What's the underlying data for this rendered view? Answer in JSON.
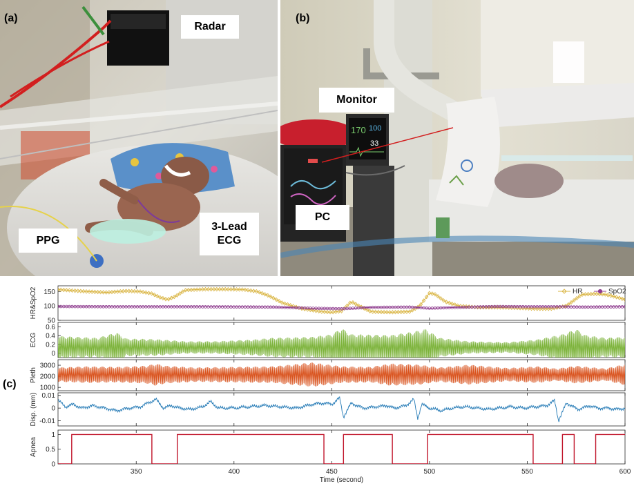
{
  "panels": {
    "a": {
      "tag": "(a)",
      "callouts": {
        "radar": "Radar",
        "ppg": "PPG",
        "ecg_line1": "3-Lead",
        "ecg_line2": "ECG"
      }
    },
    "b": {
      "tag": "(b)",
      "callouts": {
        "monitor": "Monitor",
        "pc": "PC"
      },
      "monitor_readouts": [
        "170",
        "100",
        "33"
      ]
    },
    "c": {
      "tag": "(c)"
    }
  },
  "colors": {
    "hr": "#d9b441",
    "spo2": "#8e3b8e",
    "ecg": "#7cb33a",
    "pleth": "#d9531e",
    "disp": "#1f77b4",
    "apnea": "#c0142a",
    "cable_red": "#d21f1f"
  },
  "chart_data": {
    "type": "line",
    "x_axis": {
      "label": "Time (second)",
      "lim": [
        310,
        600
      ],
      "ticks": [
        350,
        400,
        450,
        500,
        550,
        600
      ]
    },
    "subplots": [
      {
        "id": "vitals",
        "ylabel": "HR&SpO2",
        "ylim": [
          50,
          170
        ],
        "yticks": [
          50,
          100,
          150
        ],
        "legend_position": "top-right",
        "series": [
          {
            "name": "HR",
            "color": "#d9b441",
            "marker": "diamond",
            "points": [
              [
                310,
                157
              ],
              [
                325,
                150
              ],
              [
                335,
                147
              ],
              [
                345,
                152
              ],
              [
                352,
                150
              ],
              [
                358,
                143
              ],
              [
                362,
                130
              ],
              [
                366,
                122
              ],
              [
                370,
                133
              ],
              [
                375,
                155
              ],
              [
                385,
                158
              ],
              [
                395,
                158
              ],
              [
                405,
                157
              ],
              [
                412,
                150
              ],
              [
                418,
                135
              ],
              [
                425,
                110
              ],
              [
                435,
                90
              ],
              [
                445,
                80
              ],
              [
                450,
                78
              ],
              [
                455,
                82
              ],
              [
                460,
                115
              ],
              [
                464,
                100
              ],
              [
                470,
                80
              ],
              [
                480,
                78
              ],
              [
                490,
                80
              ],
              [
                495,
                100
              ],
              [
                500,
                145
              ],
              [
                503,
                140
              ],
              [
                508,
                115
              ],
              [
                515,
                100
              ],
              [
                525,
                95
              ],
              [
                535,
                95
              ],
              [
                545,
                93
              ],
              [
                555,
                90
              ],
              [
                562,
                90
              ],
              [
                570,
                100
              ],
              [
                578,
                140
              ],
              [
                585,
                142
              ],
              [
                590,
                140
              ],
              [
                596,
                130
              ],
              [
                600,
                122
              ]
            ]
          },
          {
            "name": "SpO2",
            "color": "#8e3b8e",
            "marker": "circle",
            "points": [
              [
                310,
                98
              ],
              [
                340,
                97
              ],
              [
                380,
                97
              ],
              [
                420,
                96
              ],
              [
                440,
                92
              ],
              [
                455,
                90
              ],
              [
                470,
                95
              ],
              [
                490,
                96
              ],
              [
                500,
                92
              ],
              [
                515,
                95
              ],
              [
                535,
                98
              ],
              [
                550,
                97
              ],
              [
                565,
                97
              ],
              [
                580,
                96
              ],
              [
                600,
                97
              ]
            ]
          }
        ]
      },
      {
        "id": "ecg",
        "ylabel": "ECG",
        "ylim": [
          -0.1,
          0.7
        ],
        "yticks": [
          0,
          0.2,
          0.4,
          0.6
        ],
        "series": [
          {
            "name": "",
            "color": "#7cb33a",
            "signal": "oscillation",
            "baseline": 0.13,
            "envelope": [
              [
                310,
                0.26
              ],
              [
                330,
                0.22
              ],
              [
                340,
                0.34
              ],
              [
                345,
                0.2
              ],
              [
                360,
                0.19
              ],
              [
                375,
                0.14
              ],
              [
                390,
                0.14
              ],
              [
                410,
                0.18
              ],
              [
                420,
                0.22
              ],
              [
                440,
                0.24
              ],
              [
                450,
                0.3
              ],
              [
                455,
                0.44
              ],
              [
                460,
                0.3
              ],
              [
                480,
                0.28
              ],
              [
                492,
                0.36
              ],
              [
                498,
                0.42
              ],
              [
                505,
                0.22
              ],
              [
                520,
                0.14
              ],
              [
                540,
                0.12
              ],
              [
                555,
                0.18
              ],
              [
                568,
                0.3
              ],
              [
                575,
                0.42
              ],
              [
                580,
                0.28
              ],
              [
                590,
                0.22
              ],
              [
                600,
                0.24
              ]
            ]
          }
        ]
      },
      {
        "id": "pleth",
        "ylabel": "Pleth",
        "ylim": [
          700,
          3500
        ],
        "yticks": [
          1000,
          2000,
          3000
        ],
        "series": [
          {
            "name": "",
            "color": "#d9531e",
            "signal": "oscillation",
            "baseline": 2150,
            "envelope": [
              [
                310,
                650
              ],
              [
                325,
                750
              ],
              [
                340,
                700
              ],
              [
                355,
                800
              ],
              [
                360,
                1000
              ],
              [
                365,
                800
              ],
              [
                380,
                650
              ],
              [
                400,
                700
              ],
              [
                420,
                750
              ],
              [
                440,
                1100
              ],
              [
                455,
                750
              ],
              [
                470,
                700
              ],
              [
                480,
                1000
              ],
              [
                495,
                900
              ],
              [
                505,
                650
              ],
              [
                520,
                900
              ],
              [
                540,
                600
              ],
              [
                555,
                750
              ],
              [
                565,
                550
              ],
              [
                575,
                800
              ],
              [
                590,
                550
              ],
              [
                600,
                950
              ]
            ]
          }
        ]
      },
      {
        "id": "disp",
        "ylabel": "Disp. (mm)",
        "ylim": [
          -0.014,
          0.012
        ],
        "yticks": [
          -0.01,
          0,
          0.01
        ],
        "series": [
          {
            "name": "",
            "color": "#1f77b4",
            "points": [
              [
                310,
                0.006
              ],
              [
                314,
                0.001
              ],
              [
                318,
                0.003
              ],
              [
                322,
                0.0
              ],
              [
                328,
                0.002
              ],
              [
                334,
                0.0
              ],
              [
                340,
                -0.002
              ],
              [
                346,
                0.0
              ],
              [
                352,
                0.001
              ],
              [
                356,
                0.004
              ],
              [
                360,
                0.007
              ],
              [
                364,
                0.0
              ],
              [
                368,
                0.002
              ],
              [
                372,
                0.0
              ],
              [
                378,
                -0.001
              ],
              [
                384,
                0.001
              ],
              [
                388,
                0.005
              ],
              [
                392,
                0.0
              ],
              [
                400,
                0.0
              ],
              [
                408,
                0.001
              ],
              [
                416,
                0.002
              ],
              [
                424,
                0.001
              ],
              [
                432,
                0.0
              ],
              [
                440,
                0.003
              ],
              [
                446,
                0.004
              ],
              [
                450,
                0.003
              ],
              [
                454,
                0.008
              ],
              [
                456,
                -0.007
              ],
              [
                460,
                0.004
              ],
              [
                466,
                0.0
              ],
              [
                472,
                0.001
              ],
              [
                478,
                0.002
              ],
              [
                482,
                0.0
              ],
              [
                488,
                0.002
              ],
              [
                492,
                0.007
              ],
              [
                494,
                -0.008
              ],
              [
                496,
                0.003
              ],
              [
                500,
                0.0
              ],
              [
                506,
                -0.002
              ],
              [
                512,
                0.0
              ],
              [
                518,
                0.001
              ],
              [
                524,
                0.0
              ],
              [
                530,
                -0.001
              ],
              [
                536,
                0.0
              ],
              [
                542,
                0.001
              ],
              [
                548,
                0.0
              ],
              [
                554,
                0.001
              ],
              [
                560,
                0.002
              ],
              [
                564,
                0.006
              ],
              [
                566,
                -0.01
              ],
              [
                570,
                0.004
              ],
              [
                576,
                -0.001
              ],
              [
                582,
                0.002
              ],
              [
                586,
                0.0
              ],
              [
                592,
                0.0
              ],
              [
                596,
                -0.001
              ],
              [
                600,
                0.0
              ]
            ]
          }
        ]
      },
      {
        "id": "apnea",
        "ylabel": "Apnea",
        "ylim": [
          0,
          1.15
        ],
        "yticks": [
          0,
          0.5,
          1
        ],
        "series": [
          {
            "name": "",
            "color": "#c0142a",
            "step": true,
            "points": [
              [
                310,
                0
              ],
              [
                317,
                0
              ],
              [
                317,
                1
              ],
              [
                358,
                1
              ],
              [
                358,
                0
              ],
              [
                371,
                0
              ],
              [
                371,
                1
              ],
              [
                446,
                1
              ],
              [
                446,
                0
              ],
              [
                456,
                0
              ],
              [
                456,
                1
              ],
              [
                481,
                1
              ],
              [
                481,
                0
              ],
              [
                499,
                0
              ],
              [
                499,
                1
              ],
              [
                553,
                1
              ],
              [
                553,
                0
              ],
              [
                568,
                0
              ],
              [
                568,
                1
              ],
              [
                574,
                1
              ],
              [
                574,
                0
              ],
              [
                585,
                0
              ],
              [
                585,
                1
              ],
              [
                600,
                1
              ]
            ]
          }
        ]
      }
    ]
  }
}
